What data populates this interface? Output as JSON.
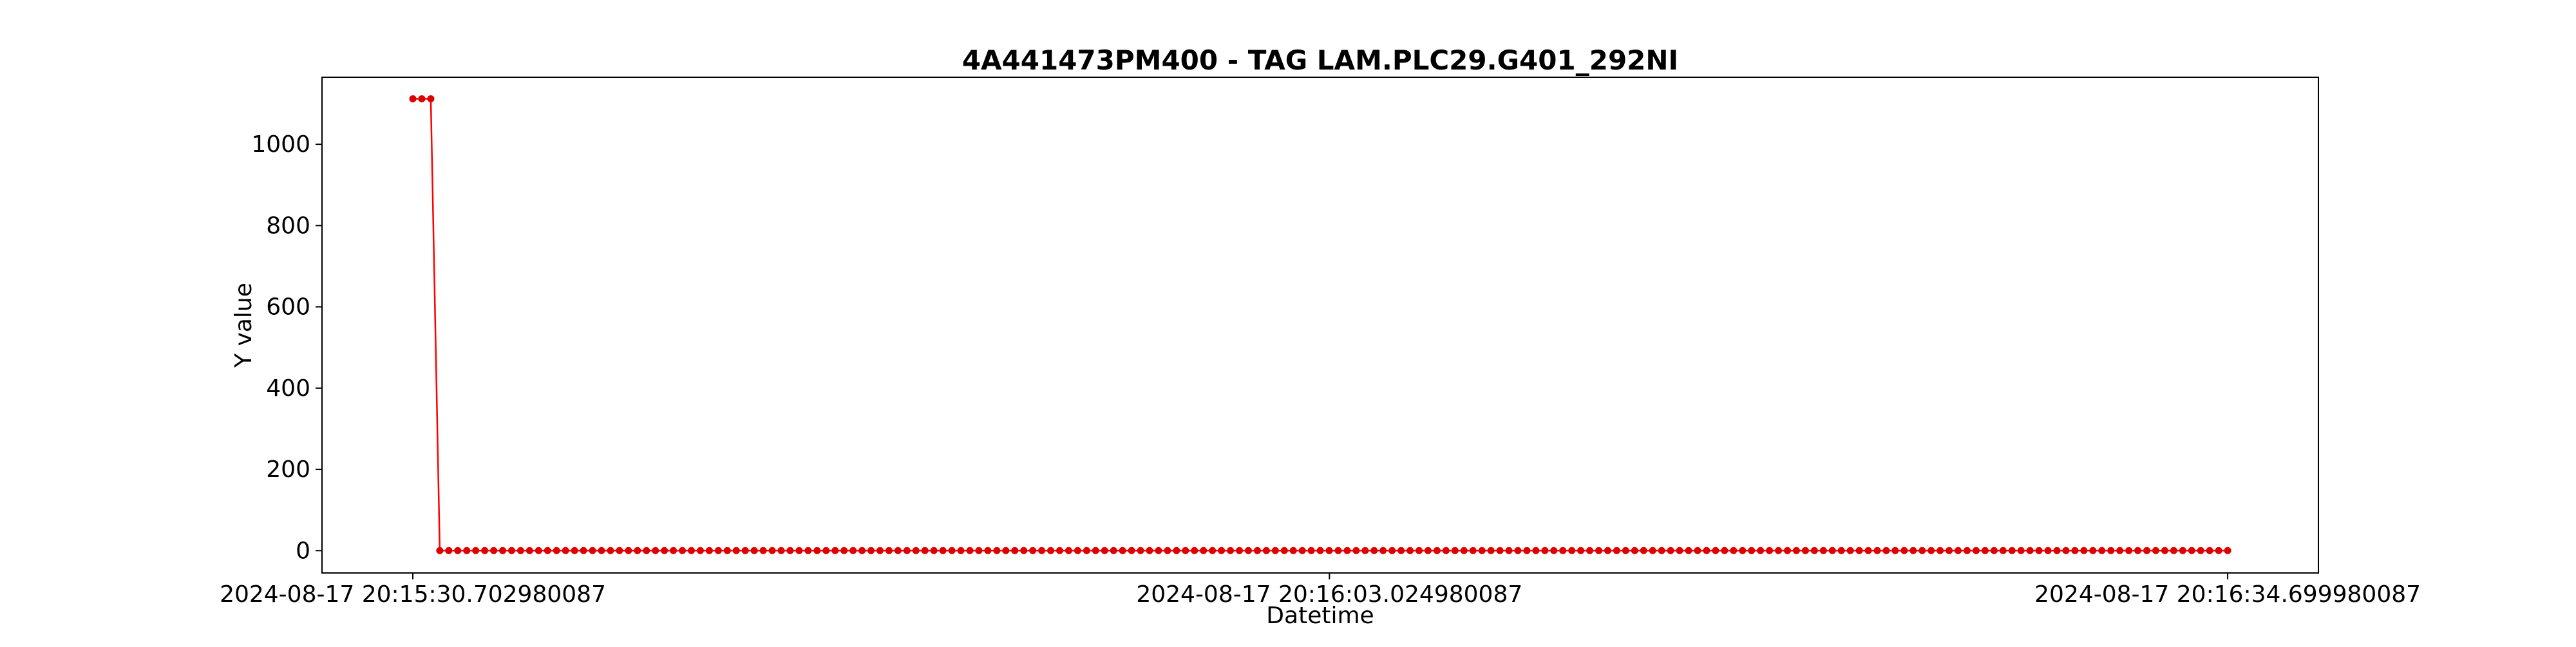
{
  "chart_data": {
    "type": "line",
    "title": "4A441473PM400 - TAG LAM.PLC29.G401_292NI",
    "xlabel": "Datetime",
    "ylabel": "Y value",
    "ylim": [
      -55,
      1165
    ],
    "y_ticks": [
      0,
      200,
      400,
      600,
      800,
      1000
    ],
    "y_tick_labels": [
      "0",
      "200",
      "400",
      "600",
      "800",
      "1000"
    ],
    "x_tick_labels": [
      "2024-08-17 20:15:30.702980087",
      "2024-08-17 20:16:03.024980087",
      "2024-08-17 20:16:34.699980087"
    ],
    "x_tick_seconds": [
      30.702980087,
      63.024980087,
      94.699980087
    ],
    "x_range_seconds": [
      27.5,
      97.9
    ],
    "grid": false,
    "legend": "none",
    "series": [
      {
        "color": "#ff0000",
        "marker_color": "#dd0000",
        "x_start_seconds": 30.702980087,
        "x_end_seconds": 94.699980087,
        "values": [
          1112,
          1112,
          1112,
          0,
          0,
          0,
          0,
          0,
          0,
          0,
          0,
          0,
          0,
          0,
          0,
          0,
          0,
          0,
          0,
          0,
          0,
          0,
          0,
          0,
          0,
          0,
          0,
          0,
          0,
          0,
          0,
          0,
          0,
          0,
          0,
          0,
          0,
          0,
          0,
          0,
          0,
          0,
          0,
          0,
          0,
          0,
          0,
          0,
          0,
          0,
          0,
          0,
          0,
          0,
          0,
          0,
          0,
          0,
          0,
          0,
          0,
          0,
          0,
          0,
          0,
          0,
          0,
          0,
          0,
          0,
          0,
          0,
          0,
          0,
          0,
          0,
          0,
          0,
          0,
          0,
          0,
          0,
          0,
          0,
          0,
          0,
          0,
          0,
          0,
          0,
          0,
          0,
          0,
          0,
          0,
          0,
          0,
          0,
          0,
          0,
          0,
          0,
          0,
          0,
          0,
          0,
          0,
          0,
          0,
          0,
          0,
          0,
          0,
          0,
          0,
          0,
          0,
          0,
          0,
          0,
          0,
          0,
          0,
          0,
          0,
          0,
          0,
          0,
          0,
          0,
          0,
          0,
          0,
          0,
          0,
          0,
          0,
          0,
          0,
          0,
          0,
          0,
          0,
          0,
          0,
          0,
          0,
          0,
          0,
          0,
          0,
          0,
          0,
          0,
          0,
          0,
          0,
          0,
          0,
          0,
          0,
          0,
          0,
          0,
          0,
          0,
          0,
          0,
          0,
          0,
          0,
          0,
          0,
          0,
          0,
          0,
          0,
          0,
          0,
          0,
          0,
          0,
          0,
          0,
          0,
          0,
          0,
          0,
          0,
          0,
          0,
          0,
          0,
          0,
          0,
          0,
          0,
          0,
          0,
          0,
          0,
          0,
          0
        ]
      }
    ]
  }
}
